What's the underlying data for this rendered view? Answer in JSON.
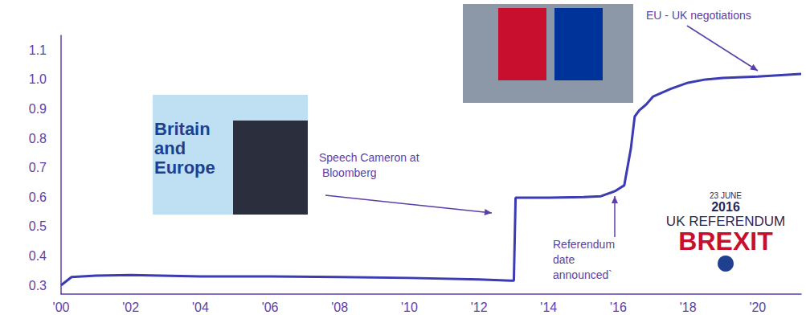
{
  "chart_data": {
    "type": "line",
    "x": [
      2000,
      2000.3,
      2001,
      2002,
      2004,
      2006,
      2008,
      2010,
      2012,
      2012.9,
      2013.0,
      2013.05,
      2014,
      2015,
      2015.5,
      2015.9,
      2016.17,
      2016.36,
      2016.47,
      2016.6,
      2016.8,
      2017,
      2017.5,
      2018,
      2018.5,
      2019,
      2020,
      2021.25
    ],
    "values": [
      0.3,
      0.328,
      0.333,
      0.335,
      0.33,
      0.33,
      0.328,
      0.325,
      0.32,
      0.316,
      0.316,
      0.598,
      0.598,
      0.6,
      0.603,
      0.62,
      0.64,
      0.765,
      0.874,
      0.895,
      0.915,
      0.942,
      0.968,
      0.989,
      1.0,
      1.005,
      1.01,
      1.019
    ],
    "color": "#3b3bb3",
    "xlim": [
      2000,
      2021.25
    ],
    "xticks": [
      {
        "value": 2000,
        "label": "'00"
      },
      {
        "value": 2002,
        "label": "'02"
      },
      {
        "value": 2004,
        "label": "'04"
      },
      {
        "value": 2006,
        "label": "'06"
      },
      {
        "value": 2008,
        "label": "'08"
      },
      {
        "value": 2010,
        "label": "'10"
      },
      {
        "value": 2012,
        "label": "'12"
      },
      {
        "value": 2014,
        "label": "'14"
      },
      {
        "value": 2016,
        "label": "'16"
      },
      {
        "value": 2018,
        "label": "'18"
      },
      {
        "value": 2020,
        "label": "'20"
      }
    ],
    "ylim": [
      0.27,
      1.15
    ],
    "yticks": [
      0.3,
      0.4,
      0.5,
      0.6,
      0.7,
      0.8,
      0.9,
      {
        "value": 1,
        "label": "1.0"
      },
      1.1
    ],
    "grid": false,
    "annotations": [
      {
        "text": "Speech Cameron at Bloomberg"
      },
      {
        "text": "Referendum date announced`"
      },
      {
        "text": "EU - UK negotiations"
      },
      {
        "text": "Britain and Europe"
      },
      {
        "text": "23 JUNE"
      },
      {
        "text": "2016"
      },
      {
        "text": "UK REFERENDUM"
      },
      {
        "text": "BREXIT"
      }
    ]
  }
}
